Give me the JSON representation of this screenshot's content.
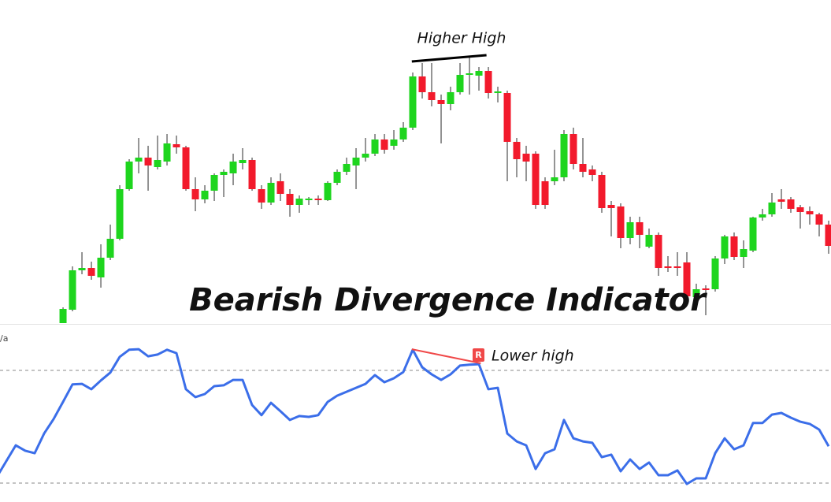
{
  "chart_data": [
    {
      "type": "candlestick",
      "title": "Bearish Divergence Indicator",
      "annotation": "Higher High",
      "up_color": "#1ed51e",
      "down_color": "#f21a2c",
      "wick_color": "#2a2a2a",
      "xlim": [
        -6.67,
        81.25
      ],
      "ylim": [
        0,
        410
      ],
      "open": [
        0,
        17,
        67,
        70,
        58,
        83,
        107,
        170,
        205,
        210,
        198,
        205,
        227,
        223,
        170,
        157,
        168,
        188,
        190,
        203,
        207,
        170,
        153,
        180,
        164,
        150,
        156,
        158,
        156,
        178,
        192,
        200,
        210,
        215,
        233,
        225,
        233,
        248,
        313,
        293,
        283,
        278,
        293,
        315,
        314,
        320,
        292,
        292,
        230,
        215,
        215,
        180,
        180,
        185,
        240,
        202,
        195,
        188,
        150,
        148,
        108,
        128,
        97,
        112,
        72,
        72,
        77,
        33,
        44,
        43,
        82,
        110,
        84,
        92,
        134,
        138,
        157,
        157,
        147,
        142,
        138,
        125
      ],
      "high": [
        20,
        72,
        90,
        78,
        100,
        125,
        175,
        208,
        235,
        225,
        238,
        240,
        238,
        225,
        185,
        175,
        190,
        195,
        215,
        222,
        210,
        175,
        185,
        190,
        170,
        162,
        160,
        162,
        180,
        195,
        210,
        222,
        235,
        240,
        240,
        245,
        255,
        318,
        330,
        330,
        290,
        300,
        330,
        338,
        325,
        325,
        300,
        295,
        235,
        225,
        218,
        185,
        220,
        245,
        248,
        235,
        200,
        192,
        155,
        152,
        135,
        135,
        120,
        115,
        85,
        90,
        90,
        50,
        48,
        85,
        112,
        115,
        105,
        135,
        145,
        165,
        170,
        160,
        150,
        148,
        140,
        130
      ],
      "low": [
        0,
        15,
        62,
        55,
        45,
        80,
        105,
        168,
        190,
        168,
        195,
        200,
        215,
        168,
        142,
        152,
        155,
        160,
        175,
        195,
        168,
        145,
        150,
        155,
        135,
        140,
        150,
        150,
        155,
        175,
        188,
        170,
        205,
        212,
        215,
        220,
        230,
        245,
        285,
        275,
        228,
        270,
        290,
        290,
        295,
        285,
        280,
        180,
        185,
        180,
        145,
        145,
        175,
        180,
        195,
        185,
        180,
        140,
        110,
        95,
        100,
        95,
        95,
        60,
        65,
        60,
        25,
        20,
        10,
        40,
        75,
        80,
        70,
        90,
        130,
        135,
        145,
        140,
        120,
        125,
        110,
        88
      ],
      "close": [
        18,
        67,
        70,
        60,
        83,
        107,
        170,
        205,
        210,
        200,
        207,
        228,
        223,
        170,
        157,
        168,
        188,
        192,
        205,
        207,
        170,
        153,
        178,
        164,
        150,
        158,
        158,
        156,
        178,
        192,
        202,
        210,
        215,
        233,
        220,
        233,
        248,
        313,
        293,
        283,
        278,
        293,
        315,
        317,
        320,
        292,
        294,
        230,
        208,
        205,
        150,
        150,
        185,
        240,
        202,
        192,
        188,
        146,
        146,
        108,
        128,
        112,
        112,
        70,
        70,
        70,
        34,
        43,
        42,
        82,
        110,
        84,
        94,
        134,
        138,
        153,
        154,
        145,
        141,
        138,
        125,
        98
      ],
      "trendline": {
        "x": [
          36.9,
          44.8
        ],
        "y": [
          332,
          340
        ],
        "color": "#000000"
      }
    },
    {
      "type": "line",
      "indicator_label": "/a",
      "annotation": "Lower high",
      "badge": "R",
      "color": "#3b6ee9",
      "xlim": [
        -6.67,
        81.25
      ],
      "ylim": [
        23.3,
        86.2
      ],
      "hlines": [
        70,
        30
      ],
      "x": [
        -7,
        -6,
        -5,
        -4,
        -3,
        -2,
        -1,
        0,
        1,
        2,
        3,
        4,
        5,
        6,
        7,
        8,
        9,
        10,
        11,
        12,
        13,
        14,
        15,
        16,
        17,
        18,
        19,
        20,
        21,
        22,
        23,
        24,
        25,
        26,
        27,
        28,
        29,
        30,
        31,
        32,
        33,
        34,
        35,
        36,
        37,
        38,
        39,
        40,
        41,
        42,
        43,
        44,
        45,
        46,
        47,
        48,
        49,
        50,
        51,
        52,
        53,
        54,
        55,
        56,
        57,
        58,
        59,
        60,
        61,
        62,
        63,
        64,
        65,
        66,
        67,
        68,
        69,
        70,
        71,
        72,
        73,
        74,
        75,
        76,
        77,
        78,
        79,
        80,
        81
      ],
      "values": [
        32.2,
        37.8,
        43.4,
        41.5,
        40.6,
        47.6,
        52.7,
        58.8,
        65.0,
        65.2,
        63.3,
        66.4,
        69.2,
        74.8,
        77.3,
        77.5,
        75.0,
        75.6,
        77.3,
        76.1,
        63.3,
        60.5,
        61.6,
        64.4,
        64.7,
        66.6,
        66.6,
        57.7,
        54.1,
        58.5,
        55.5,
        52.4,
        53.8,
        53.5,
        54.1,
        58.8,
        61.0,
        62.4,
        63.8,
        65.2,
        68.3,
        65.8,
        67.2,
        69.4,
        77.3,
        71.1,
        68.6,
        66.6,
        68.6,
        71.7,
        72.0,
        72.2,
        63.3,
        63.8,
        47.6,
        44.8,
        43.4,
        35.0,
        40.6,
        42.0,
        52.4,
        45.9,
        44.8,
        44.3,
        39.2,
        40.1,
        34.2,
        38.4,
        35.0,
        37.3,
        32.8,
        32.8,
        34.5,
        29.7,
        31.7,
        31.7,
        40.6,
        45.9,
        42.0,
        43.4,
        51.3,
        51.3,
        54.3,
        54.9,
        53.2,
        51.8,
        51.0,
        49.0,
        43.1
      ],
      "trendline": {
        "x": [
          36.9,
          44.2
        ],
        "y": [
          77.5,
          72.5
        ],
        "color": "#f04848"
      }
    }
  ]
}
